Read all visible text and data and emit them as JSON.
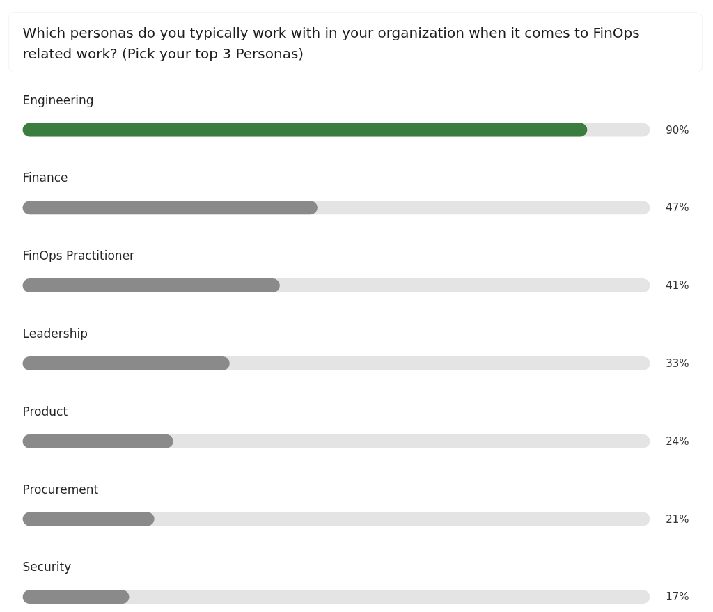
{
  "chart_data": {
    "type": "bar",
    "orientation": "horizontal",
    "title": "Which personas do you typically work with in your organization when it comes to FinOps related work? (Pick your top 3 Personas)",
    "categories": [
      "Engineering",
      "Finance",
      "FinOps Practitioner",
      "Leadership",
      "Product",
      "Procurement",
      "Security"
    ],
    "values": [
      90,
      47,
      41,
      33,
      24,
      21,
      17
    ],
    "value_labels": [
      "90%",
      "47%",
      "41%",
      "33%",
      "24%",
      "21%",
      "17%"
    ],
    "colors": [
      "#3b7d3e",
      "#8a8a8a",
      "#8a8a8a",
      "#8a8a8a",
      "#8a8a8a",
      "#8a8a8a",
      "#8a8a8a"
    ],
    "xlim": [
      0,
      100
    ],
    "tick_labels": "y",
    "grid": false
  }
}
